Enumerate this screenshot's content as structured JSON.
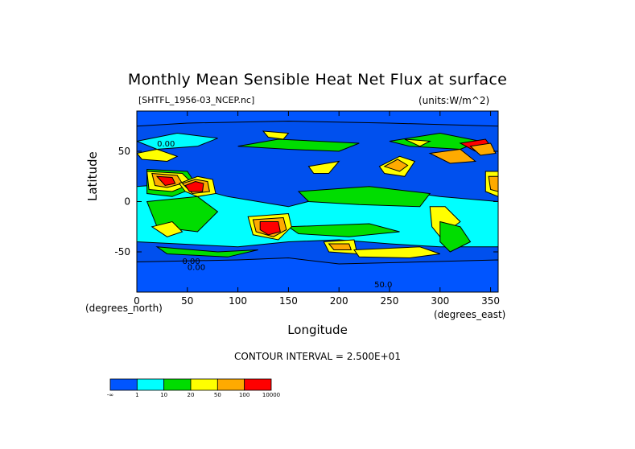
{
  "chart_data": {
    "type": "heatmap",
    "title": "Monthly Mean Sensible Heat Net Flux at surface",
    "dataset_label": "[SHTFL_1956-03_NCEP.nc]",
    "units_label": "(units:W/m^2)",
    "xlabel": "Longitude",
    "ylabel": "Latitude",
    "x_unit": "(degrees_north)",
    "x_unit_east": "(degrees_east)",
    "xlim": [
      0,
      357.5
    ],
    "ylim": [
      -90,
      90
    ],
    "x_ticks": [
      0,
      50,
      100,
      150,
      200,
      250,
      300,
      350
    ],
    "y_ticks": [
      50,
      0,
      -50
    ],
    "contour_interval": "CONTOUR INTERVAL = 2.500E+01",
    "contour_labels": [
      "0.00",
      "0.00",
      "0.00",
      "50.0"
    ],
    "colorbar": {
      "labels": [
        "-∞",
        "1",
        "10",
        "20",
        "50",
        "100",
        "10000"
      ],
      "colors": [
        "#0055ff",
        "#00ffff",
        "#00dd00",
        "#ffff00",
        "#ffaa00",
        "#ff0000"
      ]
    },
    "background_color": "#0050ee"
  }
}
